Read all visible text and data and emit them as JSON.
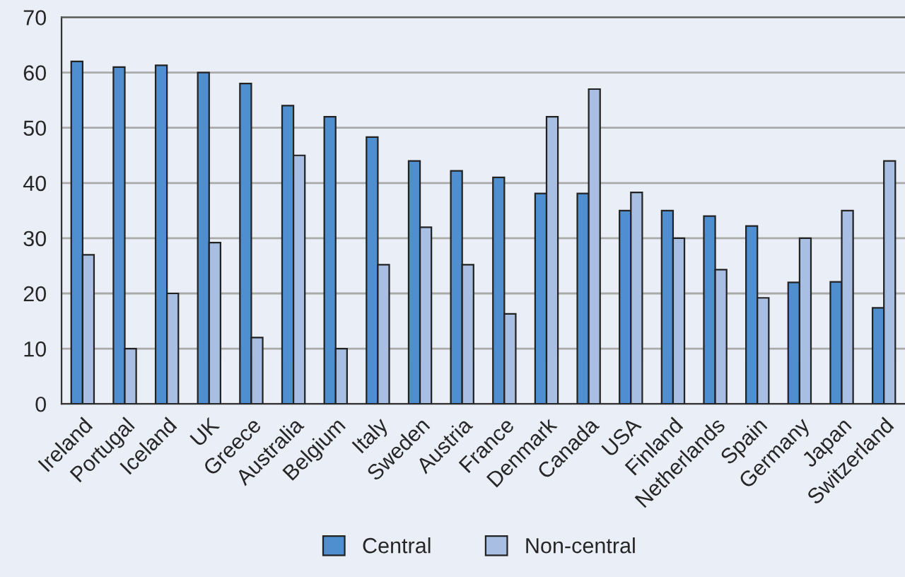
{
  "chart_data": {
    "type": "bar",
    "categories": [
      "Ireland",
      "Portugal",
      "Iceland",
      "UK",
      "Greece",
      "Australia",
      "Belgium",
      "Italy",
      "Sweden",
      "Austria",
      "France",
      "Denmark",
      "Canada",
      "USA",
      "Finland",
      "Netherlands",
      "Spain",
      "Germany",
      "Japan",
      "Switzerland"
    ],
    "series": [
      {
        "name": "Central",
        "color": "#4f8fcf",
        "values": [
          62,
          61,
          61.3,
          60,
          58,
          54,
          52,
          48.3,
          44,
          42.2,
          41,
          38.1,
          38.1,
          35,
          35,
          34,
          32.2,
          22,
          22.1,
          17.4
        ]
      },
      {
        "name": "Non-central",
        "color": "#a8bfe3",
        "values": [
          27,
          10,
          20,
          29.2,
          12,
          45,
          10,
          25.2,
          32,
          25.2,
          16.3,
          52,
          57,
          38.3,
          30,
          24.3,
          19.2,
          30,
          35,
          44
        ]
      }
    ],
    "ylim": [
      0,
      70
    ],
    "yticks": [
      0,
      10,
      20,
      30,
      40,
      50,
      60,
      70
    ],
    "grid": "y",
    "legend": "bottom"
  }
}
